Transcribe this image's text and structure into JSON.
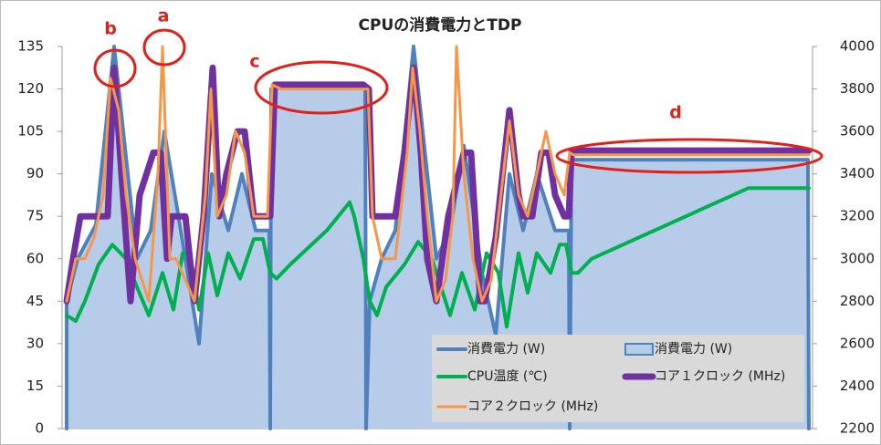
{
  "chart_data": {
    "type": "line",
    "title": "CPUの消費電力とTDP",
    "annotations": [
      "a",
      "b",
      "c",
      "d"
    ],
    "xlim": [
      0,
      822
    ],
    "ylim": [
      0,
      135
    ],
    "yticks": [
      0,
      15,
      30,
      45,
      60,
      75,
      90,
      105,
      120,
      135
    ],
    "y2lim": [
      2200,
      4000
    ],
    "y2ticks": [
      2200,
      2400,
      2600,
      2800,
      3000,
      3200,
      3400,
      3600,
      3800,
      4000
    ],
    "grid": false,
    "legend": "bottom-right",
    "series": [
      {
        "name": "消費電力 (W)",
        "style": "line",
        "color": "#4f81bd",
        "x": [
          5,
          5,
          17,
          37,
          57,
          82,
          97,
          112,
          130,
          150,
          164,
          182,
          197,
          212,
          227,
          228,
          229,
          240,
          330,
          332,
          333,
          337,
          350,
          365,
          385,
          410,
          425,
          440,
          460,
          475,
          490,
          505,
          520,
          540,
          555,
          556,
          558,
          600,
          817,
          818
        ],
        "values": [
          0,
          45,
          60,
          72,
          135,
          60,
          70,
          105,
          70,
          30,
          90,
          70,
          90,
          70,
          70,
          0,
          120,
          121,
          121,
          120,
          0,
          45,
          60,
          70,
          135,
          60,
          70,
          100,
          55,
          33,
          90,
          70,
          90,
          70,
          70,
          0,
          95,
          95,
          95,
          0
        ]
      },
      {
        "name": "消費電力 (W)",
        "style": "area",
        "color": "#b7cce9",
        "x": [
          5,
          5,
          17,
          37,
          57,
          82,
          97,
          112,
          130,
          150,
          164,
          182,
          197,
          212,
          227,
          228,
          229,
          240,
          330,
          332,
          333,
          337,
          350,
          365,
          385,
          410,
          425,
          440,
          460,
          475,
          490,
          505,
          520,
          540,
          555,
          556,
          558,
          600,
          817,
          818
        ],
        "values": [
          0,
          45,
          60,
          72,
          135,
          60,
          70,
          105,
          70,
          30,
          90,
          70,
          90,
          70,
          70,
          0,
          120,
          121,
          121,
          120,
          0,
          45,
          60,
          70,
          135,
          60,
          70,
          100,
          55,
          33,
          90,
          70,
          90,
          70,
          70,
          0,
          95,
          95,
          95,
          0
        ]
      },
      {
        "name": "CPU温度 (℃)",
        "style": "line",
        "color": "#00b050",
        "x": [
          5,
          15,
          25,
          40,
          55,
          70,
          82,
          95,
          110,
          122,
          132,
          140,
          150,
          160,
          170,
          182,
          195,
          210,
          220,
          228,
          235,
          250,
          290,
          315,
          320,
          330,
          337,
          345,
          355,
          375,
          390,
          405,
          415,
          425,
          438,
          452,
          465,
          478,
          487,
          500,
          510,
          520,
          535,
          545,
          552,
          558,
          565,
          580,
          752,
          818
        ],
        "values": [
          40,
          38,
          45,
          58,
          65,
          60,
          50,
          40,
          55,
          42,
          62,
          62,
          42,
          62,
          47,
          62,
          53,
          67,
          67,
          55,
          53,
          58,
          70,
          80,
          75,
          60,
          45,
          40,
          50,
          58,
          66,
          60,
          50,
          40,
          55,
          42,
          62,
          55,
          36,
          62,
          48,
          62,
          55,
          65,
          65,
          55,
          55,
          60,
          85,
          85
        ]
      },
      {
        "name": "コア１クロック (MHz)",
        "style": "line",
        "axis": "y2",
        "color": "#7030a0",
        "x": [
          5,
          12,
          20,
          35,
          50,
          57,
          65,
          75,
          85,
          100,
          108,
          115,
          120,
          135,
          145,
          155,
          165,
          172,
          180,
          192,
          200,
          210,
          218,
          228,
          233,
          240,
          330,
          336,
          340,
          350,
          365,
          375,
          385,
          393,
          400,
          410,
          423,
          440,
          448,
          458,
          463,
          475,
          490,
          500,
          505,
          515,
          525,
          533,
          540,
          550,
          555,
          558,
          562,
          818
        ],
        "values": [
          2800,
          3000,
          3200,
          3200,
          3200,
          3900,
          3400,
          2800,
          3300,
          3500,
          3500,
          3000,
          3200,
          3200,
          2800,
          3200,
          3900,
          3200,
          3400,
          3600,
          3600,
          3200,
          3200,
          3200,
          3820,
          3820,
          3820,
          3800,
          3200,
          3200,
          3200,
          3500,
          3900,
          3500,
          3000,
          2800,
          3200,
          3500,
          3500,
          2800,
          2800,
          3100,
          3700,
          3300,
          3200,
          3200,
          3500,
          3500,
          3300,
          3200,
          3200,
          3500,
          3510,
          3510
        ]
      },
      {
        "name": "コア２クロック (MHz)",
        "style": "line",
        "axis": "y2",
        "color": "#f79646",
        "x": [
          5,
          15,
          25,
          35,
          45,
          53,
          62,
          70,
          80,
          95,
          105,
          110,
          118,
          125,
          135,
          145,
          157,
          163,
          170,
          180,
          190,
          200,
          210,
          225,
          230,
          240,
          330,
          335,
          340,
          350,
          365,
          378,
          384,
          392,
          400,
          410,
          420,
          428,
          432,
          440,
          450,
          460,
          470,
          478,
          490,
          500,
          510,
          520,
          530,
          540,
          550,
          556,
          560,
          818
        ],
        "values": [
          2800,
          3000,
          3000,
          3100,
          3300,
          3850,
          3700,
          3300,
          3000,
          2800,
          3400,
          4000,
          3000,
          3000,
          2900,
          2800,
          3300,
          3800,
          3200,
          3300,
          3600,
          3500,
          3200,
          3200,
          3820,
          3800,
          3800,
          3800,
          3200,
          3000,
          3000,
          3500,
          3900,
          3600,
          3200,
          2800,
          2900,
          3200,
          4000,
          3400,
          3000,
          2800,
          2900,
          3200,
          3650,
          3300,
          3200,
          3400,
          3600,
          3400,
          3300,
          3500,
          3490,
          3490
        ]
      }
    ]
  }
}
